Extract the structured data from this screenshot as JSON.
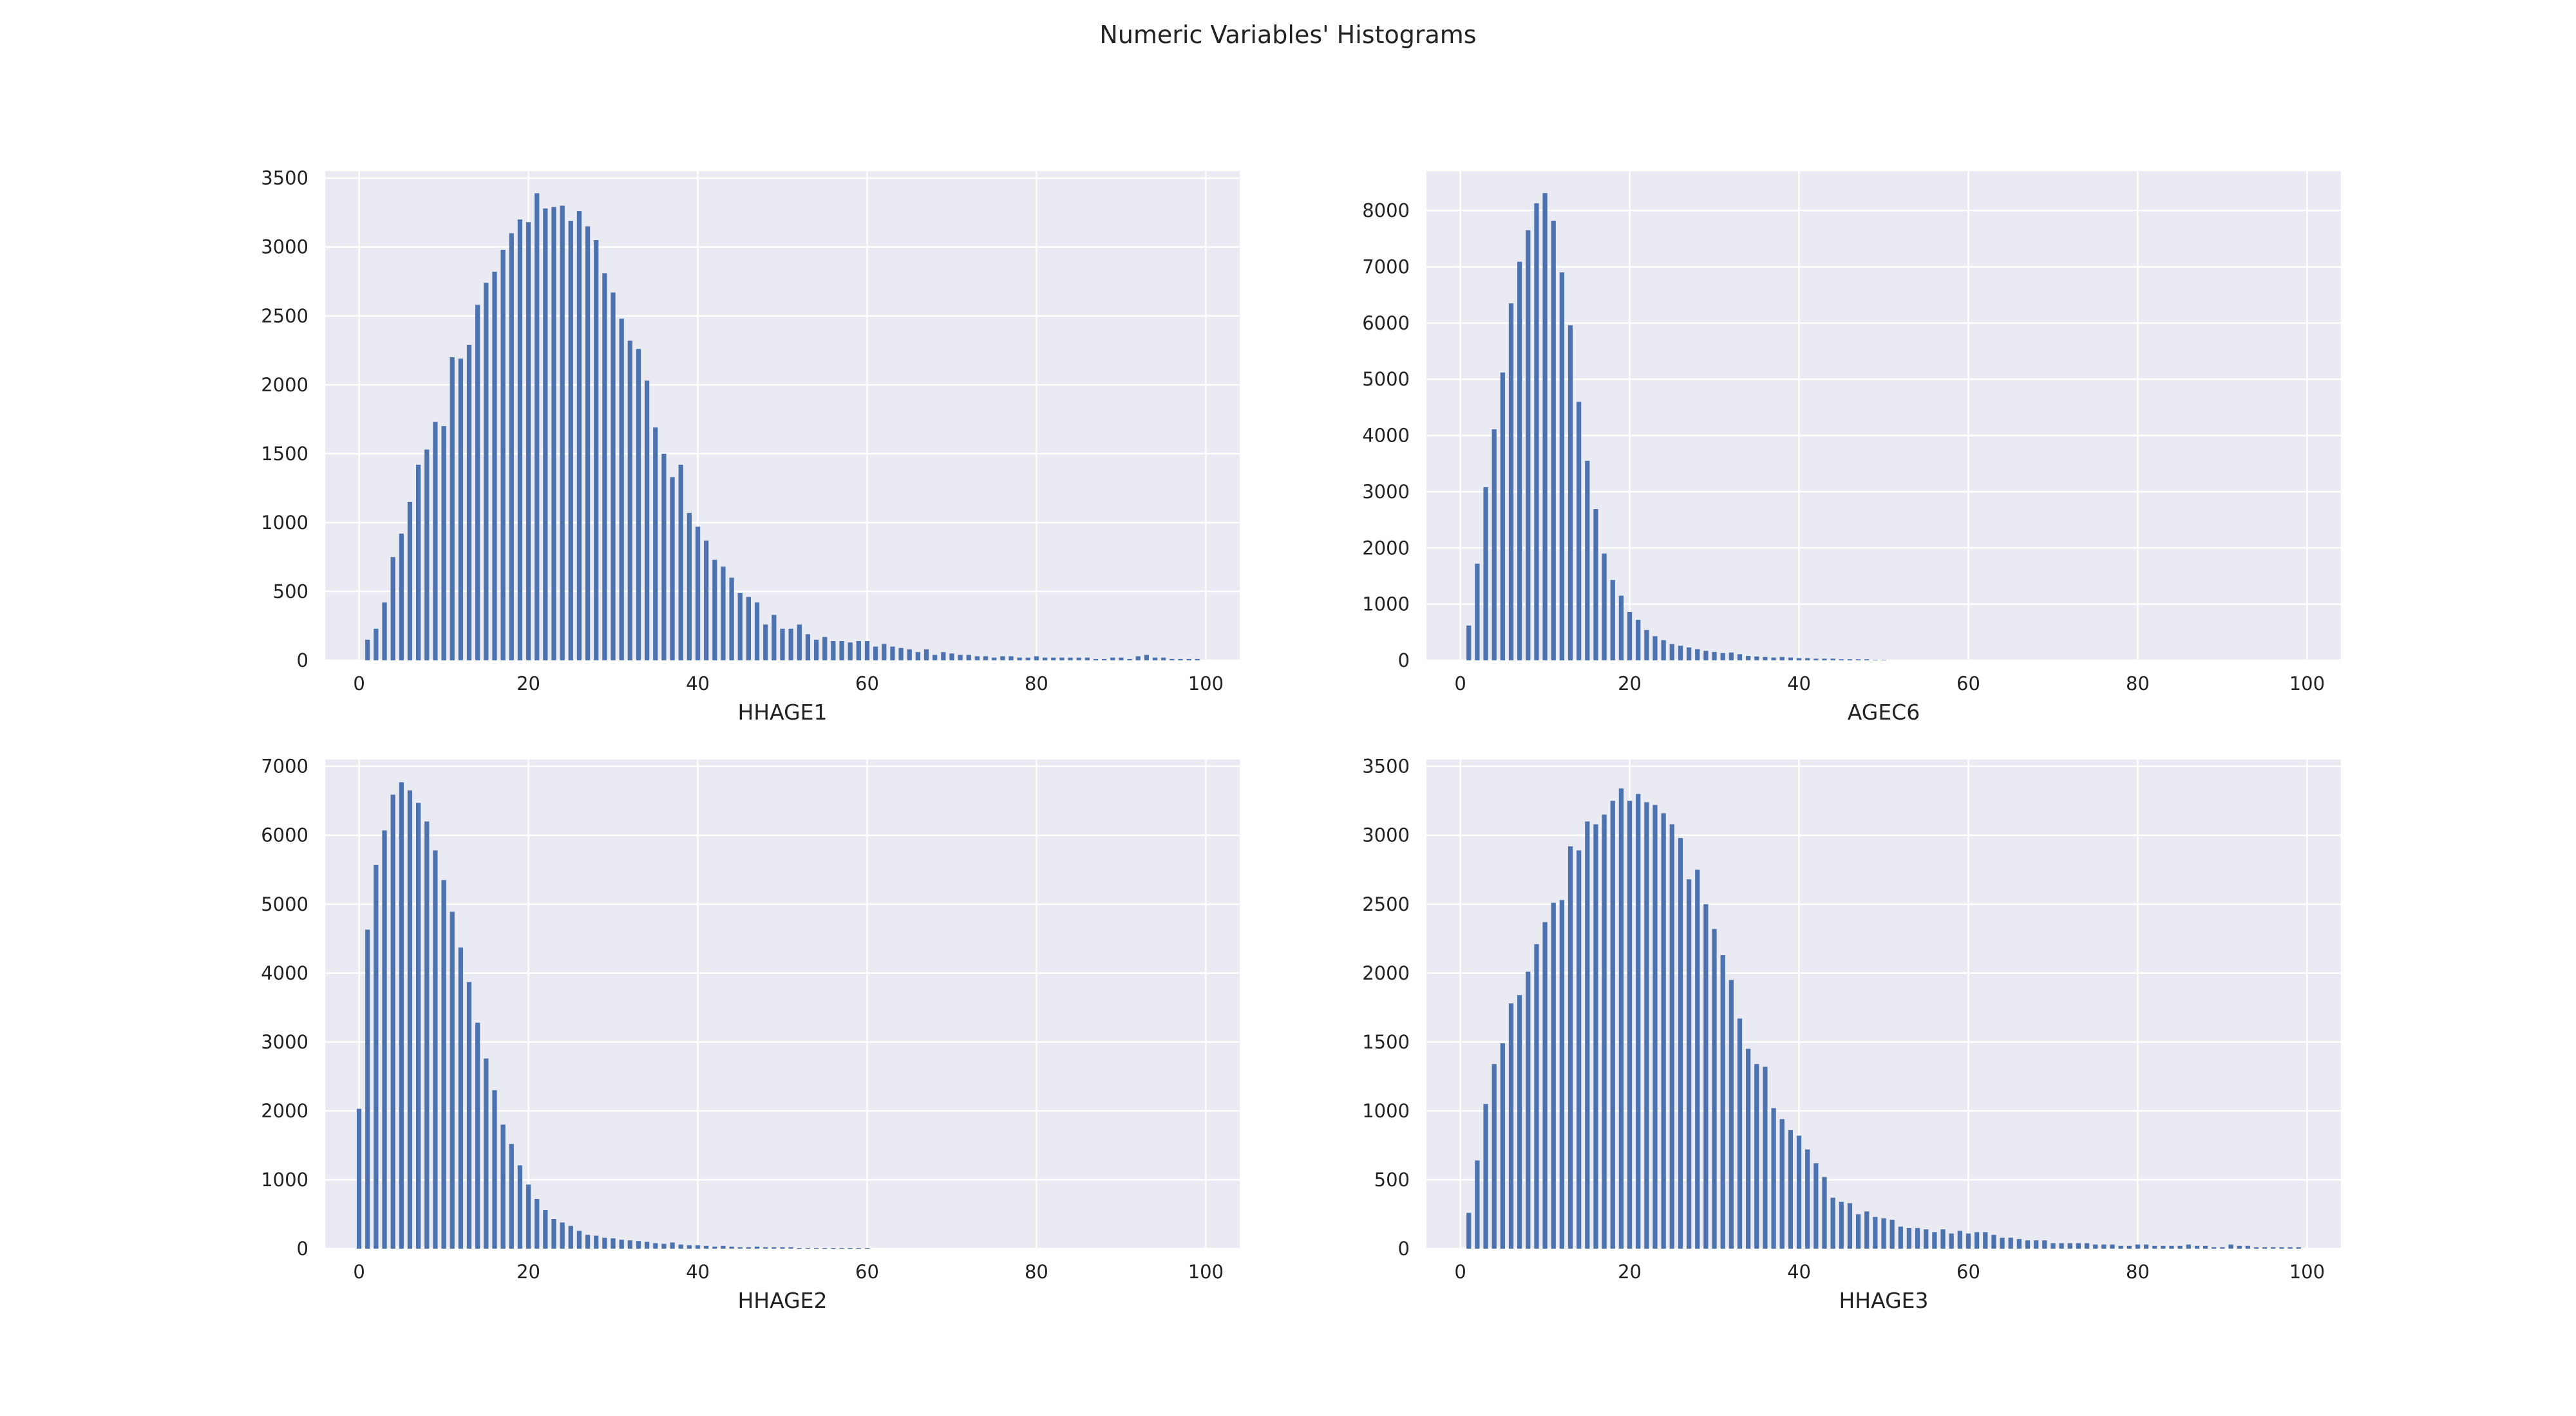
{
  "title": "Numeric Variables' Histograms",
  "colors": {
    "bar": "#4c72b0",
    "plot_bg": "#eaeaf2",
    "grid": "#ffffff",
    "text": "#222222"
  },
  "chart_data": [
    {
      "type": "bar",
      "xlabel": "HHAGE1",
      "ylabel": "",
      "xlim": [
        -4,
        104
      ],
      "ylim": [
        0,
        3550
      ],
      "xticks": [
        0,
        20,
        40,
        60,
        80,
        100
      ],
      "yticks": [
        0,
        500,
        1000,
        1500,
        2000,
        2500,
        3000,
        3500
      ],
      "x": [
        1,
        2,
        3,
        4,
        5,
        6,
        7,
        8,
        9,
        10,
        11,
        12,
        13,
        14,
        15,
        16,
        17,
        18,
        19,
        20,
        21,
        22,
        23,
        24,
        25,
        26,
        27,
        28,
        29,
        30,
        31,
        32,
        33,
        34,
        35,
        36,
        37,
        38,
        39,
        40,
        41,
        42,
        43,
        44,
        45,
        46,
        47,
        48,
        49,
        50,
        51,
        52,
        53,
        54,
        55,
        56,
        57,
        58,
        59,
        60,
        61,
        62,
        63,
        64,
        65,
        66,
        67,
        68,
        69,
        70,
        71,
        72,
        73,
        74,
        75,
        76,
        77,
        78,
        79,
        80,
        81,
        82,
        83,
        84,
        85,
        86,
        87,
        88,
        89,
        90,
        91,
        92,
        93,
        94,
        95,
        96,
        97,
        98,
        99
      ],
      "values": [
        150,
        230,
        420,
        750,
        920,
        1150,
        1420,
        1530,
        1730,
        1700,
        2200,
        2190,
        2290,
        2580,
        2740,
        2820,
        2980,
        3100,
        3200,
        3180,
        3390,
        3280,
        3290,
        3300,
        3190,
        3260,
        3150,
        3050,
        2810,
        2670,
        2480,
        2320,
        2260,
        2030,
        1690,
        1500,
        1330,
        1420,
        1070,
        970,
        870,
        730,
        680,
        600,
        490,
        460,
        420,
        260,
        330,
        230,
        230,
        260,
        190,
        150,
        170,
        140,
        140,
        130,
        140,
        140,
        100,
        120,
        100,
        90,
        80,
        60,
        80,
        40,
        60,
        50,
        40,
        40,
        30,
        30,
        20,
        30,
        30,
        20,
        20,
        30,
        20,
        20,
        20,
        20,
        20,
        20,
        10,
        10,
        20,
        20,
        10,
        30,
        40,
        20,
        20,
        10,
        10,
        10,
        10
      ]
    },
    {
      "type": "bar",
      "xlabel": "AGEC6",
      "ylabel": "",
      "xlim": [
        -4,
        104
      ],
      "ylim": [
        0,
        8700
      ],
      "xticks": [
        0,
        20,
        40,
        60,
        80,
        100
      ],
      "yticks": [
        0,
        1000,
        2000,
        3000,
        4000,
        5000,
        6000,
        7000,
        8000
      ],
      "x": [
        1,
        2,
        3,
        4,
        5,
        6,
        7,
        8,
        9,
        10,
        11,
        12,
        13,
        14,
        15,
        16,
        17,
        18,
        19,
        20,
        21,
        22,
        23,
        24,
        25,
        26,
        27,
        28,
        29,
        30,
        31,
        32,
        33,
        34,
        35,
        36,
        37,
        38,
        39,
        40,
        41,
        42,
        43,
        44,
        45,
        46,
        47,
        48,
        49,
        50
      ],
      "values": [
        620,
        1720,
        3080,
        4110,
        5120,
        6350,
        7090,
        7650,
        8130,
        8310,
        7820,
        6900,
        5960,
        4600,
        3550,
        2690,
        1900,
        1430,
        1150,
        860,
        720,
        540,
        430,
        360,
        290,
        260,
        230,
        200,
        170,
        150,
        130,
        140,
        110,
        80,
        70,
        60,
        50,
        60,
        50,
        40,
        40,
        30,
        30,
        30,
        20,
        20,
        20,
        20,
        10,
        10
      ]
    },
    {
      "type": "bar",
      "xlabel": "HHAGE2",
      "ylabel": "",
      "xlim": [
        -4,
        104
      ],
      "ylim": [
        0,
        7100
      ],
      "xticks": [
        0,
        20,
        40,
        60,
        80,
        100
      ],
      "yticks": [
        0,
        1000,
        2000,
        3000,
        4000,
        5000,
        6000,
        7000
      ],
      "x": [
        0,
        1,
        2,
        3,
        4,
        5,
        6,
        7,
        8,
        9,
        10,
        11,
        12,
        13,
        14,
        15,
        16,
        17,
        18,
        19,
        20,
        21,
        22,
        23,
        24,
        25,
        26,
        27,
        28,
        29,
        30,
        31,
        32,
        33,
        34,
        35,
        36,
        37,
        38,
        39,
        40,
        41,
        42,
        43,
        44,
        45,
        46,
        47,
        48,
        49,
        50,
        51,
        52,
        53,
        54,
        55,
        56,
        57,
        58,
        59,
        60
      ],
      "values": [
        2030,
        4630,
        5570,
        6070,
        6590,
        6770,
        6650,
        6470,
        6200,
        5780,
        5350,
        4890,
        4370,
        3870,
        3280,
        2760,
        2300,
        1800,
        1520,
        1210,
        930,
        720,
        560,
        430,
        380,
        330,
        260,
        200,
        190,
        160,
        150,
        130,
        120,
        110,
        100,
        80,
        70,
        90,
        60,
        50,
        50,
        40,
        30,
        40,
        30,
        20,
        20,
        30,
        20,
        20,
        20,
        20,
        10,
        10,
        10,
        10,
        10,
        10,
        10,
        10,
        10
      ]
    },
    {
      "type": "bar",
      "xlabel": "HHAGE3",
      "ylabel": "",
      "xlim": [
        -4,
        104
      ],
      "ylim": [
        0,
        3550
      ],
      "xticks": [
        0,
        20,
        40,
        60,
        80,
        100
      ],
      "yticks": [
        0,
        500,
        1000,
        1500,
        2000,
        2500,
        3000,
        3500
      ],
      "x": [
        1,
        2,
        3,
        4,
        5,
        6,
        7,
        8,
        9,
        10,
        11,
        12,
        13,
        14,
        15,
        16,
        17,
        18,
        19,
        20,
        21,
        22,
        23,
        24,
        25,
        26,
        27,
        28,
        29,
        30,
        31,
        32,
        33,
        34,
        35,
        36,
        37,
        38,
        39,
        40,
        41,
        42,
        43,
        44,
        45,
        46,
        47,
        48,
        49,
        50,
        51,
        52,
        53,
        54,
        55,
        56,
        57,
        58,
        59,
        60,
        61,
        62,
        63,
        64,
        65,
        66,
        67,
        68,
        69,
        70,
        71,
        72,
        73,
        74,
        75,
        76,
        77,
        78,
        79,
        80,
        81,
        82,
        83,
        84,
        85,
        86,
        87,
        88,
        89,
        90,
        91,
        92,
        93,
        94,
        95,
        96,
        97,
        98,
        99
      ],
      "values": [
        260,
        640,
        1050,
        1340,
        1490,
        1780,
        1840,
        2010,
        2210,
        2370,
        2510,
        2530,
        2920,
        2890,
        3100,
        3080,
        3150,
        3250,
        3340,
        3250,
        3300,
        3240,
        3220,
        3160,
        3080,
        2980,
        2680,
        2750,
        2500,
        2320,
        2130,
        1950,
        1670,
        1450,
        1340,
        1320,
        1020,
        940,
        860,
        820,
        720,
        620,
        520,
        370,
        340,
        330,
        250,
        270,
        230,
        220,
        210,
        160,
        150,
        150,
        140,
        120,
        140,
        110,
        130,
        110,
        120,
        120,
        100,
        80,
        80,
        70,
        60,
        60,
        60,
        40,
        40,
        40,
        40,
        40,
        30,
        30,
        30,
        20,
        20,
        30,
        30,
        20,
        20,
        20,
        20,
        30,
        20,
        20,
        10,
        10,
        30,
        20,
        20,
        10,
        10,
        10,
        10,
        10,
        10
      ]
    }
  ]
}
